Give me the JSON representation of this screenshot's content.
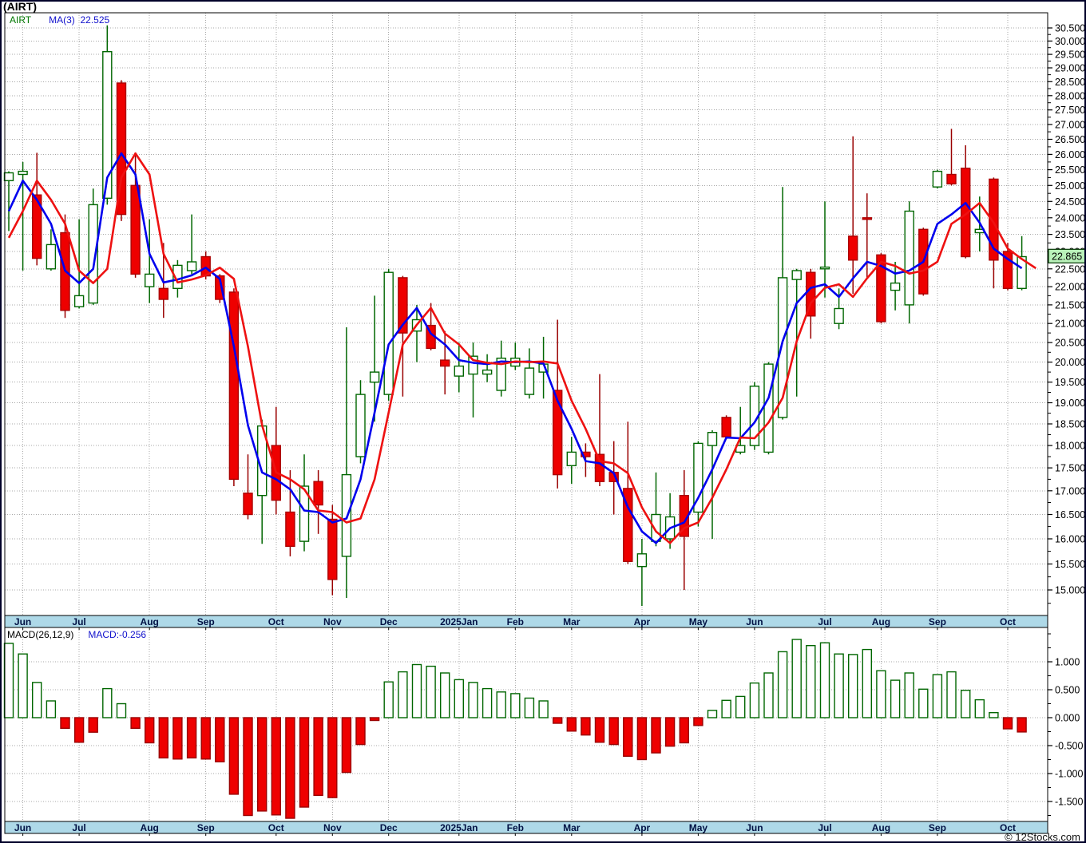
{
  "window": {
    "title": "(AIRT)"
  },
  "price_panel": {
    "legend": {
      "symbol": "AIRT",
      "ma_label": "MA(3)",
      "ma_value": "22.525"
    },
    "last_price_tag": "22.865"
  },
  "macd_panel": {
    "legend_left": "MACD(26,12,9)",
    "legend_right": "MACD:-0.256"
  },
  "watermark": "© 12Stocks.com",
  "chart_data": {
    "type": "candlestick",
    "symbol": "AIRT",
    "timeframe": "weekly",
    "title": "(AIRT)",
    "grid": true,
    "legend_position": "top-left",
    "price_axis": {
      "scale": "log",
      "side": "right",
      "ylim": [
        14.5,
        31.1
      ],
      "ticks": [
        "30.500",
        "30.000",
        "29.500",
        "29.000",
        "28.500",
        "28.000",
        "27.500",
        "27.000",
        "26.500",
        "26.000",
        "25.500",
        "25.000",
        "24.500",
        "24.000",
        "23.500",
        "23.000",
        "22.500",
        "22.000",
        "21.500",
        "21.000",
        "20.500",
        "20.000",
        "19.500",
        "19.000",
        "18.500",
        "18.000",
        "17.500",
        "17.000",
        "16.500",
        "16.000",
        "15.500",
        "15.000"
      ]
    },
    "macd_axis": {
      "ylim": [
        -1.85,
        1.6
      ],
      "ticks": [
        "1.000",
        "0.500",
        "0.000",
        "-0.500",
        "-1.000",
        "-1.500"
      ]
    },
    "months": [
      {
        "label": "Jun",
        "candle": 2
      },
      {
        "label": "Jul",
        "candle": 6
      },
      {
        "label": "Aug",
        "candle": 11
      },
      {
        "label": "Sep",
        "candle": 15
      },
      {
        "label": "Oct",
        "candle": 20
      },
      {
        "label": "Nov",
        "candle": 24
      },
      {
        "label": "Dec",
        "candle": 28
      },
      {
        "label": "2025Jan",
        "candle": 33
      },
      {
        "label": "Feb",
        "candle": 37
      },
      {
        "label": "Mar",
        "candle": 41
      },
      {
        "label": "Apr",
        "candle": 46
      },
      {
        "label": "May",
        "candle": 50
      },
      {
        "label": "Jun",
        "candle": 54
      },
      {
        "label": "Jul",
        "candle": 59
      },
      {
        "label": "Aug",
        "candle": 63
      },
      {
        "label": "Sep",
        "candle": 67
      },
      {
        "label": "Oct",
        "candle": 72
      }
    ],
    "candles_ohlc": [
      [
        25.15,
        25.45,
        23.6,
        25.4
      ],
      [
        25.35,
        25.75,
        22.45,
        25.45
      ],
      [
        24.7,
        26.05,
        22.6,
        22.8
      ],
      [
        22.5,
        23.65,
        22.45,
        23.2
      ],
      [
        23.55,
        24.1,
        21.15,
        21.35
      ],
      [
        21.45,
        23.95,
        21.4,
        21.75
      ],
      [
        21.55,
        24.9,
        21.5,
        24.4
      ],
      [
        24.6,
        30.6,
        24.4,
        29.6
      ],
      [
        28.45,
        28.55,
        23.9,
        24.1
      ],
      [
        25.0,
        26.0,
        22.25,
        22.35
      ],
      [
        22.0,
        23.95,
        21.55,
        22.35
      ],
      [
        21.95,
        23.25,
        21.15,
        21.65
      ],
      [
        21.95,
        22.75,
        21.7,
        22.6
      ],
      [
        22.45,
        24.1,
        22.35,
        22.7
      ],
      [
        22.85,
        23.0,
        22.2,
        22.3
      ],
      [
        22.3,
        22.35,
        21.55,
        21.65
      ],
      [
        21.85,
        21.95,
        17.1,
        17.25
      ],
      [
        16.95,
        17.8,
        16.4,
        16.5
      ],
      [
        16.9,
        18.6,
        15.9,
        18.45
      ],
      [
        18.0,
        18.9,
        16.5,
        16.8
      ],
      [
        16.55,
        17.45,
        15.65,
        15.85
      ],
      [
        15.95,
        17.8,
        15.75,
        17.1
      ],
      [
        17.2,
        17.45,
        16.1,
        16.7
      ],
      [
        16.4,
        16.7,
        14.9,
        15.2
      ],
      [
        15.65,
        20.9,
        14.85,
        17.35
      ],
      [
        17.75,
        19.55,
        17.6,
        19.2
      ],
      [
        19.5,
        21.75,
        18.55,
        19.75
      ],
      [
        19.2,
        22.5,
        19.05,
        22.4
      ],
      [
        22.25,
        22.3,
        19.15,
        20.75
      ],
      [
        20.8,
        21.5,
        20.0,
        21.1
      ],
      [
        20.95,
        21.55,
        20.3,
        20.35
      ],
      [
        20.05,
        20.8,
        19.2,
        19.9
      ],
      [
        19.65,
        20.5,
        19.25,
        19.9
      ],
      [
        19.7,
        20.5,
        18.65,
        20.15
      ],
      [
        19.7,
        20.2,
        19.5,
        19.8
      ],
      [
        19.3,
        20.55,
        19.15,
        20.1
      ],
      [
        19.9,
        20.5,
        19.8,
        20.1
      ],
      [
        19.2,
        20.35,
        19.1,
        19.85
      ],
      [
        19.75,
        20.65,
        19.1,
        19.95
      ],
      [
        19.3,
        21.1,
        17.05,
        17.35
      ],
      [
        17.55,
        18.2,
        17.15,
        17.85
      ],
      [
        17.85,
        18.05,
        17.3,
        17.75
      ],
      [
        17.8,
        19.7,
        17.1,
        17.2
      ],
      [
        17.4,
        18.1,
        16.5,
        17.2
      ],
      [
        17.05,
        18.55,
        15.5,
        15.55
      ],
      [
        15.45,
        16.0,
        14.7,
        15.7
      ],
      [
        15.95,
        17.4,
        15.85,
        16.5
      ],
      [
        16.0,
        16.95,
        15.8,
        16.45
      ],
      [
        16.9,
        17.45,
        15.0,
        16.05
      ],
      [
        16.55,
        18.1,
        16.25,
        18.05
      ],
      [
        18.0,
        18.35,
        16.0,
        18.3
      ],
      [
        18.65,
        18.7,
        18.15,
        18.2
      ],
      [
        17.85,
        18.9,
        17.8,
        18.0
      ],
      [
        18.0,
        19.5,
        17.9,
        19.4
      ],
      [
        17.85,
        20.0,
        17.8,
        19.95
      ],
      [
        18.65,
        24.95,
        18.6,
        22.25
      ],
      [
        22.2,
        22.5,
        19.15,
        22.45
      ],
      [
        22.4,
        22.5,
        20.6,
        21.2
      ],
      [
        22.5,
        24.5,
        21.7,
        22.55
      ],
      [
        21.0,
        21.95,
        20.85,
        21.4
      ],
      [
        23.45,
        26.6,
        21.8,
        22.75
      ],
      [
        24.0,
        24.75,
        22.25,
        23.95
      ],
      [
        22.9,
        22.95,
        21.0,
        21.05
      ],
      [
        21.9,
        22.7,
        21.35,
        22.1
      ],
      [
        21.5,
        24.5,
        21.0,
        24.2
      ],
      [
        23.65,
        23.7,
        21.75,
        21.8
      ],
      [
        24.95,
        25.5,
        24.9,
        25.45
      ],
      [
        25.35,
        26.85,
        25.0,
        25.05
      ],
      [
        25.55,
        26.3,
        22.8,
        22.85
      ],
      [
        23.55,
        24.65,
        23.0,
        23.65
      ],
      [
        25.2,
        25.25,
        21.95,
        22.75
      ],
      [
        23.0,
        23.25,
        21.9,
        21.95
      ],
      [
        21.95,
        23.45,
        21.9,
        22.85
      ]
    ],
    "macd_hist": [
      1.33,
      1.14,
      0.63,
      0.3,
      -0.19,
      -0.44,
      -0.26,
      0.52,
      0.25,
      -0.19,
      -0.45,
      -0.72,
      -0.74,
      -0.72,
      -0.74,
      -0.79,
      -1.37,
      -1.75,
      -1.67,
      -1.74,
      -1.8,
      -1.6,
      -1.39,
      -1.43,
      -0.98,
      -0.48,
      -0.05,
      0.64,
      0.82,
      0.95,
      0.92,
      0.8,
      0.68,
      0.63,
      0.52,
      0.46,
      0.43,
      0.35,
      0.3,
      -0.1,
      -0.24,
      -0.31,
      -0.44,
      -0.48,
      -0.69,
      -0.75,
      -0.63,
      -0.51,
      -0.45,
      -0.14,
      0.13,
      0.31,
      0.38,
      0.62,
      0.8,
      1.18,
      1.4,
      1.29,
      1.34,
      1.14,
      1.13,
      1.22,
      0.84,
      0.67,
      0.8,
      0.51,
      0.77,
      0.82,
      0.49,
      0.32,
      0.09,
      -0.2,
      -0.256
    ],
    "ma": {
      "blue_period": 3,
      "red_is_lagged_ma3": true,
      "seed_closes": [
        23.0,
        22.6,
        24.6
      ]
    },
    "last_price": 22.865,
    "colors": {
      "up_stroke": "#006600",
      "up_fill": "#ffffff",
      "down_fill": "#ee0000",
      "down_stroke": "#aa0000",
      "down_wick": "#990000",
      "ma_blue": "#0000ee",
      "ma_red": "#ee1111",
      "grid": "#a8a8a8",
      "frame": "#000000",
      "month_bar": "#aed9e8",
      "price_tag_bg": "#b9f1b9"
    }
  }
}
